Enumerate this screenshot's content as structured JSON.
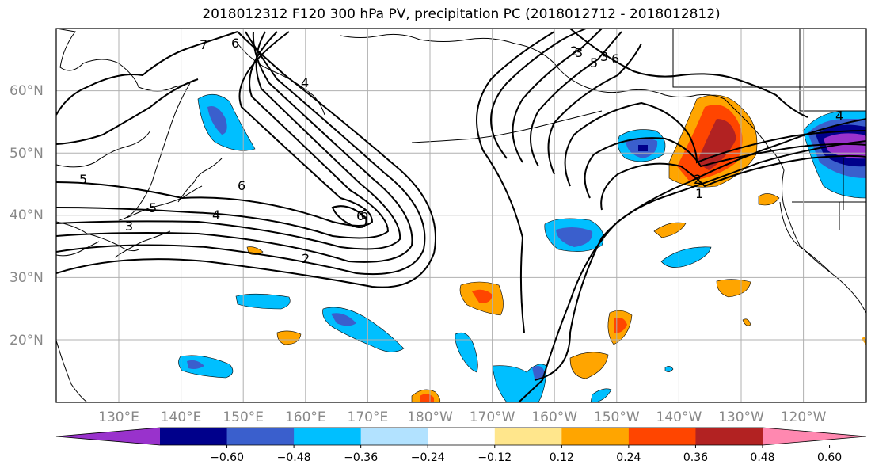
{
  "title": "2018012312 F120 300 hPa PV, precipitation PC (2018012712 - 2018012812)",
  "lat_labels": [
    "60°N",
    "50°N",
    "40°N",
    "30°N",
    "20°N"
  ],
  "lon_labels": [
    "130°E",
    "140°E",
    "150°E",
    "160°E",
    "170°E",
    "180°W",
    "170°W",
    "160°W",
    "150°W",
    "140°W",
    "130°W",
    "120°W"
  ],
  "colorbar": {
    "ticks": [
      "−0.60",
      "−0.48",
      "−0.36",
      "−0.24",
      "−0.12",
      "0.12",
      "0.24",
      "0.36",
      "0.48",
      "0.60"
    ],
    "colors": [
      "#9932cc",
      "#00008b",
      "#3a5fcd",
      "#00bfff",
      "#b2e2ff",
      "#ffffff",
      "#ffe68c",
      "#ffa500",
      "#ff4500",
      "#b22222",
      "#ff88b0"
    ]
  },
  "contour_labels": [
    "7",
    "6",
    "5",
    "4",
    "3",
    "2",
    "6",
    "4",
    "3",
    "2",
    "6",
    "3",
    "5",
    "6",
    "2",
    "1",
    "4",
    "5",
    "6"
  ]
}
